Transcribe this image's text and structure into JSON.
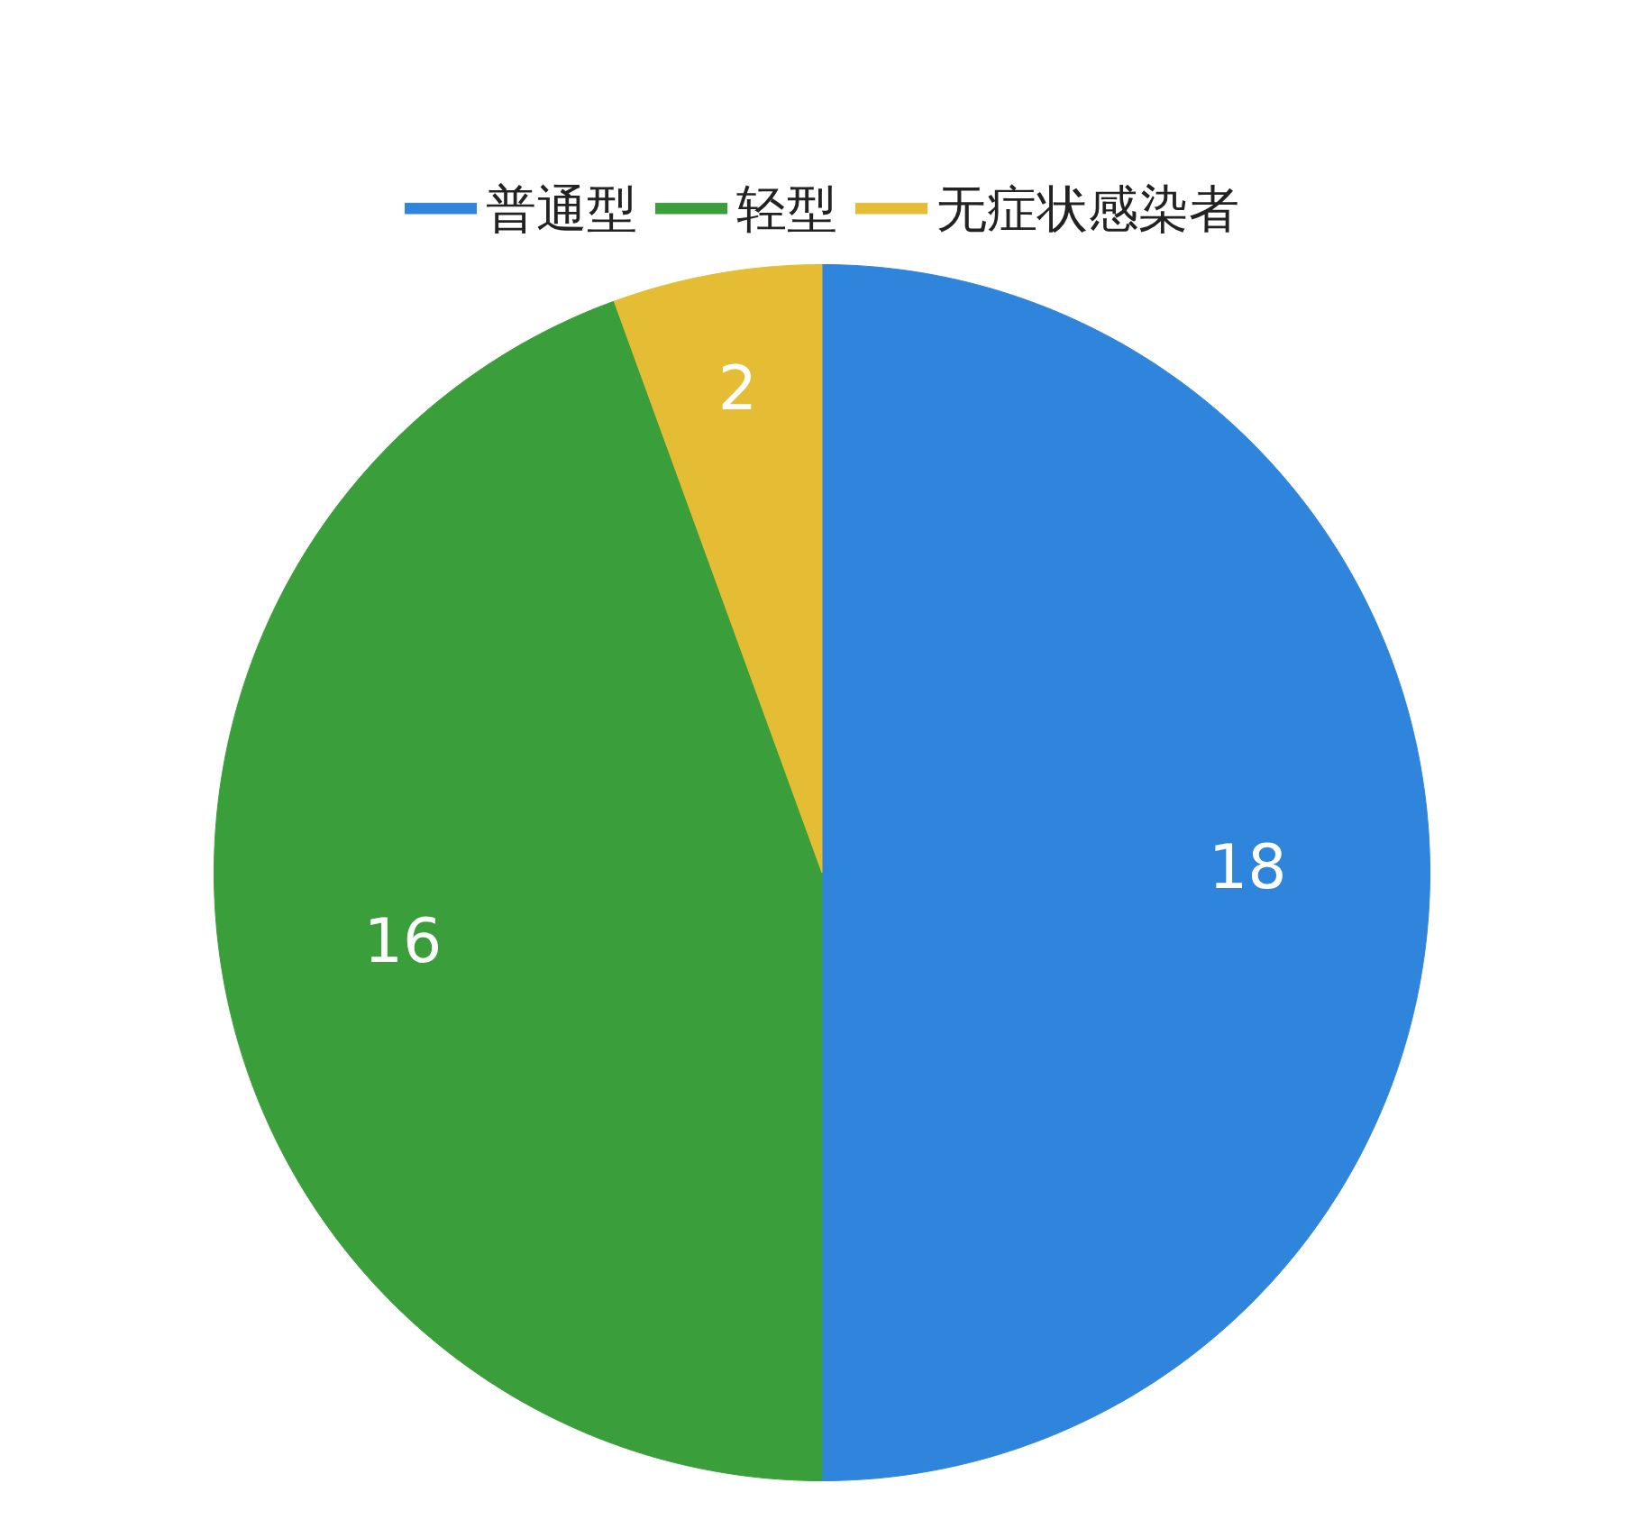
{
  "chart_data": {
    "type": "pie",
    "categories": [
      "普通型",
      "轻型",
      "无症状感染者"
    ],
    "values": [
      18,
      16,
      2
    ],
    "colors": [
      "#2f84dc",
      "#3a9e3a",
      "#e4bd34"
    ],
    "data_labels": true,
    "legend": "top"
  }
}
